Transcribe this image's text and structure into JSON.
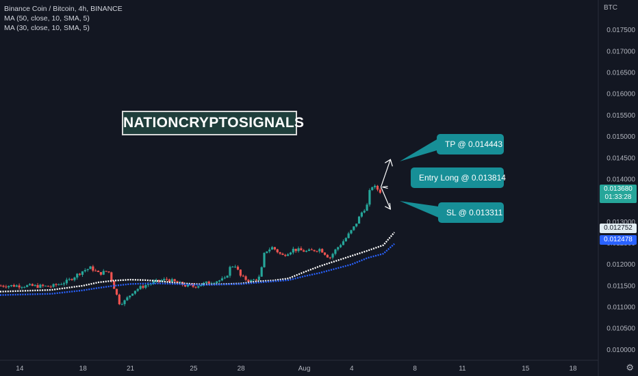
{
  "header": {
    "symbol_line": "Binance Coin / Bitcoin, 4h, BINANCE",
    "ma50_line": "MA (50, close, 10, SMA, 5)",
    "ma30_line": "MA (30, close, 10, SMA, 5)"
  },
  "watermark": "NATIONCRYPTOSIGNALS",
  "callouts": {
    "tp": "TP @ 0.014443",
    "entry": "Entry Long @ 0.013814",
    "sl": "SL @ 0.013311"
  },
  "price_tags": {
    "last_price": "0.013680",
    "countdown": "01:33:28",
    "ma50_value": "0.012752",
    "ma30_value": "0.012478"
  },
  "axis_currency": "BTC",
  "colors": {
    "background": "#131722",
    "up": "#26a69a",
    "down": "#ef5350",
    "ma50": "#ffffff",
    "ma30": "#2962ff",
    "callout": "#178f97",
    "last_price_tag": "#26a69a",
    "ma50_tag": "#e1ecf2",
    "ma30_tag": "#2962ff"
  },
  "chart_data": {
    "type": "candlestick",
    "y_unit": "BTC",
    "ylim": [
      0.00975,
      0.0182
    ],
    "y_ticks": [
      0.01,
      0.0105,
      0.011,
      0.0115,
      0.012,
      0.0125,
      0.013,
      0.0135,
      0.014,
      0.0145,
      0.015,
      0.0155,
      0.016,
      0.0165,
      0.017,
      0.0175
    ],
    "y_tick_labels": [
      "0.010000",
      "0.010500",
      "0.011000",
      "0.011500",
      "0.012000",
      "0.012500",
      "0.013000",
      "0.013500",
      "0.014000",
      "0.014500",
      "0.015000",
      "0.015500",
      "0.016000",
      "0.016500",
      "0.017000",
      "0.017500"
    ],
    "x_ticks": [
      {
        "label": "14",
        "day": 0
      },
      {
        "label": "18",
        "day": 4
      },
      {
        "label": "21",
        "day": 7
      },
      {
        "label": "25",
        "day": 11
      },
      {
        "label": "28",
        "day": 14
      },
      {
        "label": "Aug",
        "day": 18
      },
      {
        "label": "4",
        "day": 21
      },
      {
        "label": "8",
        "day": 25
      },
      {
        "label": "11",
        "day": 28
      },
      {
        "label": "15",
        "day": 32
      },
      {
        "label": "18",
        "day": 35
      }
    ],
    "x_range_days": [
      -1.25,
      36.6
    ],
    "candle_close_path": [
      [
        0,
        0.0115
      ],
      [
        2,
        0.01148
      ],
      [
        3,
        0.0116
      ],
      [
        4,
        0.01185
      ],
      [
        4.5,
        0.01192
      ],
      [
        5,
        0.01178
      ],
      [
        5.6,
        0.01185
      ],
      [
        6.3,
        0.0111
      ],
      [
        6.6,
        0.01112
      ],
      [
        7.2,
        0.01138
      ],
      [
        8,
        0.01152
      ],
      [
        8.7,
        0.0116
      ],
      [
        9.3,
        0.01165
      ],
      [
        10.5,
        0.0115
      ],
      [
        11,
        0.01148
      ],
      [
        12,
        0.01158
      ],
      [
        13,
        0.01165
      ],
      [
        13.3,
        0.01192
      ],
      [
        13.6,
        0.012
      ],
      [
        14,
        0.0117
      ],
      [
        14.6,
        0.0116
      ],
      [
        15.2,
        0.0117
      ],
      [
        15.5,
        0.0123
      ],
      [
        16,
        0.0124
      ],
      [
        16.6,
        0.0122
      ],
      [
        17.3,
        0.01235
      ],
      [
        18.2,
        0.0123
      ],
      [
        19,
        0.01236
      ],
      [
        19.6,
        0.01215
      ],
      [
        20,
        0.01235
      ],
      [
        20.6,
        0.0126
      ],
      [
        21.2,
        0.0129
      ],
      [
        21.6,
        0.0132
      ],
      [
        22,
        0.0134
      ],
      [
        22.2,
        0.01385
      ],
      [
        22.5,
        0.0138
      ],
      [
        22.9,
        0.01368
      ]
    ],
    "series": [
      {
        "name": "MA (50, close, 10, SMA, 5)",
        "last_value": 0.012752,
        "points": [
          [
            -1.25,
            0.01136
          ],
          [
            2,
            0.0114
          ],
          [
            4,
            0.0115
          ],
          [
            5,
            0.01158
          ],
          [
            6,
            0.01162
          ],
          [
            7,
            0.01164
          ],
          [
            8,
            0.01163
          ],
          [
            9,
            0.0116
          ],
          [
            10,
            0.01156
          ],
          [
            11,
            0.01154
          ],
          [
            12,
            0.01153
          ],
          [
            13,
            0.01154
          ],
          [
            14,
            0.01155
          ],
          [
            15,
            0.0116
          ],
          [
            16,
            0.01162
          ],
          [
            17,
            0.01167
          ],
          [
            18,
            0.01182
          ],
          [
            19,
            0.01196
          ],
          [
            20,
            0.01208
          ],
          [
            21,
            0.0122
          ],
          [
            22,
            0.01232
          ],
          [
            23,
            0.01245
          ],
          [
            23.7,
            0.01275
          ]
        ]
      },
      {
        "name": "MA (30, close, 10, SMA, 5)",
        "last_value": 0.012478,
        "points": [
          [
            -1.25,
            0.01128
          ],
          [
            2,
            0.01131
          ],
          [
            4,
            0.01139
          ],
          [
            5,
            0.01145
          ],
          [
            6,
            0.0115
          ],
          [
            7,
            0.01154
          ],
          [
            8,
            0.01155
          ],
          [
            9,
            0.01155
          ],
          [
            10,
            0.01154
          ],
          [
            11,
            0.01152
          ],
          [
            12,
            0.01152
          ],
          [
            13,
            0.01153
          ],
          [
            14,
            0.01154
          ],
          [
            15,
            0.01157
          ],
          [
            16,
            0.0116
          ],
          [
            17,
            0.01163
          ],
          [
            18,
            0.01172
          ],
          [
            19,
            0.0118
          ],
          [
            20,
            0.0119
          ],
          [
            21,
            0.012
          ],
          [
            22,
            0.01215
          ],
          [
            23,
            0.01225
          ],
          [
            23.7,
            0.01248
          ]
        ]
      }
    ],
    "annotation_lines": {
      "entry": 0.013814,
      "tp": 0.014443,
      "sl": 0.013311
    }
  }
}
